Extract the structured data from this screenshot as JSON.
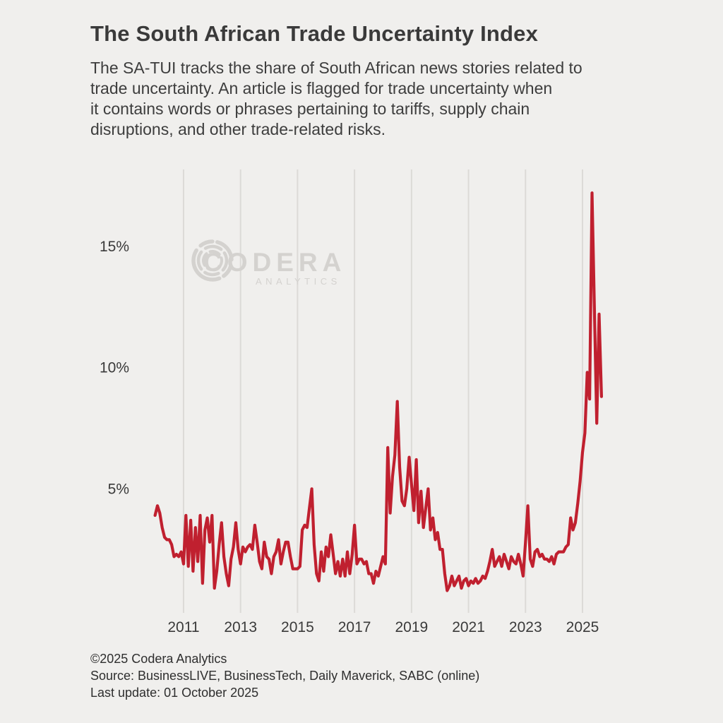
{
  "header": {
    "title": "The South African Trade Uncertainty Index",
    "subtitle_lines": [
      "The SA-TUI tracks the share of South African news stories related to",
      "trade uncertainty. An article is flagged for trade uncertainty when",
      "it contains words or phrases pertaining to tariffs, supply chain",
      "disruptions, and other trade-related risks."
    ]
  },
  "watermark": {
    "brand": "CODERA",
    "sub": "ANALYTICS"
  },
  "footer": {
    "copyright": "©2025 Codera Analytics",
    "source": "Source: BusinessLIVE, BusinessTech, Daily Maverick, SABC (online)",
    "last_update": "Last update: 01 October 2025"
  },
  "colors": {
    "background": "#f0efed",
    "line": "#c0202f",
    "gridline": "#dcdad7",
    "text": "#3a3a3a",
    "watermark": "#d4d2cf"
  },
  "chart_data": {
    "type": "line",
    "series_name": "SA-TUI (share of news stories flagged for trade uncertainty)",
    "unit": "%",
    "frequency": "monthly",
    "start": {
      "year": 2010,
      "month": 1
    },
    "end": {
      "year": 2025,
      "month": 9
    },
    "x_ticks": [
      2011,
      2013,
      2015,
      2017,
      2019,
      2021,
      2023,
      2025
    ],
    "x_tick_labels": [
      "2011",
      "2013",
      "2015",
      "2017",
      "2019",
      "2021",
      "2023",
      "2025"
    ],
    "y_ticks": [
      5,
      10,
      15
    ],
    "y_tick_labels": [
      "5%",
      "10%",
      "15%"
    ],
    "ylim": [
      0,
      18.2
    ],
    "grid": "vertical-only",
    "legend": "none",
    "values": [
      3.9,
      4.3,
      4.0,
      3.4,
      3.0,
      2.9,
      2.9,
      2.7,
      2.2,
      2.3,
      2.2,
      2.4,
      1.9,
      3.9,
      1.8,
      3.7,
      1.6,
      3.4,
      2.0,
      3.9,
      1.1,
      3.3,
      3.8,
      2.8,
      3.9,
      0.9,
      1.6,
      2.7,
      3.6,
      2.2,
      1.5,
      1.0,
      2.1,
      2.6,
      3.6,
      2.5,
      1.9,
      2.6,
      2.4,
      2.6,
      2.7,
      2.5,
      3.5,
      2.8,
      2.0,
      1.7,
      2.8,
      2.2,
      2.1,
      1.5,
      2.2,
      2.4,
      2.9,
      1.9,
      2.4,
      2.8,
      2.8,
      2.2,
      1.7,
      1.7,
      1.7,
      1.8,
      3.3,
      3.5,
      3.4,
      4.2,
      5.0,
      2.7,
      1.5,
      1.2,
      2.4,
      1.6,
      2.6,
      2.2,
      3.1,
      2.3,
      1.5,
      2.0,
      1.4,
      2.1,
      1.4,
      2.4,
      1.5,
      2.3,
      3.5,
      1.9,
      2.1,
      2.1,
      1.9,
      2.0,
      1.5,
      1.5,
      1.1,
      1.6,
      1.4,
      1.8,
      2.2,
      1.9,
      6.7,
      4.0,
      5.5,
      6.4,
      8.6,
      5.9,
      4.5,
      4.3,
      5.0,
      6.3,
      5.2,
      4.1,
      6.2,
      3.6,
      4.9,
      3.4,
      4.2,
      5.0,
      3.3,
      3.8,
      2.9,
      3.2,
      2.5,
      2.5,
      1.5,
      0.8,
      1.0,
      1.4,
      1.0,
      1.2,
      1.4,
      0.9,
      1.2,
      1.3,
      1.0,
      1.2,
      1.1,
      1.3,
      1.1,
      1.2,
      1.4,
      1.3,
      1.6,
      2.0,
      2.5,
      1.8,
      2.0,
      2.2,
      1.8,
      2.3,
      2.0,
      1.7,
      2.2,
      2.0,
      1.9,
      2.3,
      1.9,
      1.4,
      2.8,
      4.3,
      2.1,
      1.8,
      2.4,
      2.5,
      2.2,
      2.3,
      2.1,
      2.1,
      2.0,
      2.2,
      1.9,
      2.3,
      2.4,
      2.4,
      2.4,
      2.6,
      2.7,
      3.8,
      3.3,
      3.6,
      4.4,
      5.3,
      6.5,
      7.3,
      9.8,
      8.7,
      17.2,
      12.5,
      7.7,
      12.2,
      8.8
    ]
  }
}
